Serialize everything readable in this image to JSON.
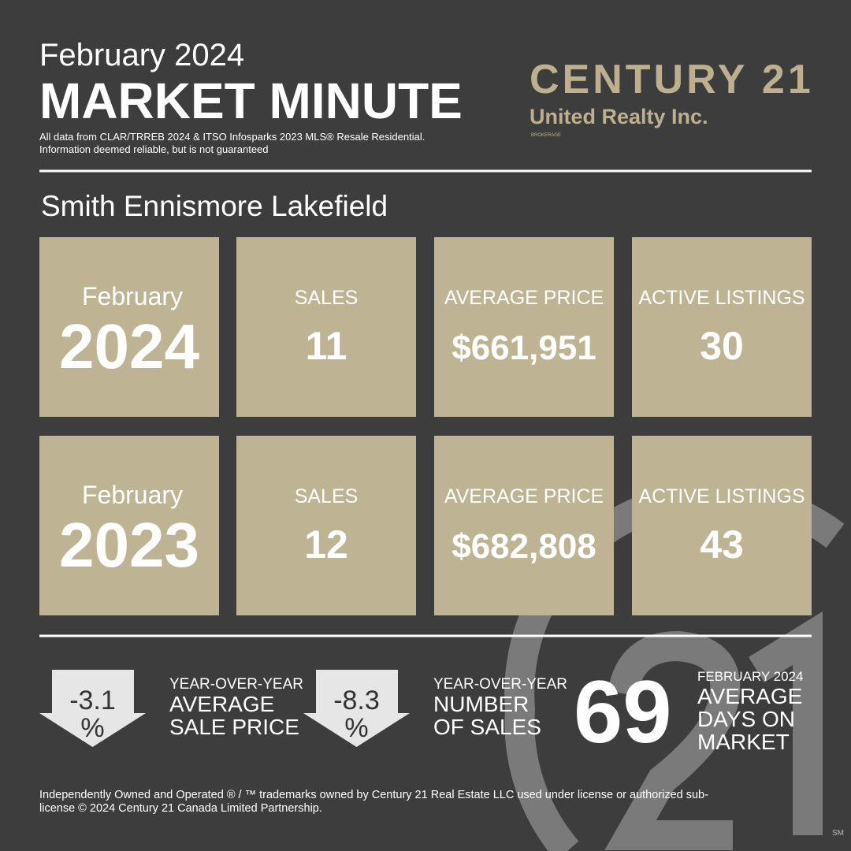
{
  "header": {
    "month": "February 2024",
    "title": "MARKET MINUTE",
    "disclaimer": [
      "All data from CLAR/TRREB 2024 & ITSO Infosparks 2023 MLS® Resale  Residential.",
      "Information deemed reliable, but is not guaranteed"
    ]
  },
  "logo": {
    "name": "CENTURY 21",
    "company": "United Realty Inc.",
    "tagline": "BROKERAGE"
  },
  "region": "Smith Ennismore Lakefield",
  "periods": [
    {
      "month": "February",
      "year": "2024",
      "stats": [
        {
          "label": "SALES",
          "value": "11"
        },
        {
          "label": "AVERAGE PRICE",
          "value": "$661,951"
        },
        {
          "label": "ACTIVE LISTINGS",
          "value": "30"
        }
      ]
    },
    {
      "month": "February",
      "year": "2023",
      "stats": [
        {
          "label": "SALES",
          "value": "12"
        },
        {
          "label": "AVERAGE PRICE",
          "value": "$682,808"
        },
        {
          "label": "ACTIVE LISTINGS",
          "value": "43"
        }
      ]
    }
  ],
  "summary": [
    {
      "value": "-3.1",
      "unit": "%",
      "label": [
        "YEAR-OVER-YEAR",
        "AVERAGE",
        "SALE PRICE"
      ]
    },
    {
      "value": "-8.3",
      "unit": "%",
      "label": [
        "YEAR-OVER-YEAR",
        "NUMBER",
        "OF SALES"
      ]
    }
  ],
  "days_on_market": {
    "value": "69",
    "label": [
      "FEBRUARY 2024",
      "AVERAGE",
      "DAYS ON",
      "MARKET"
    ]
  },
  "footer": [
    "Independently Owned and Operated ® / ™ trademarks owned by Century 21 Real Estate LLC used under license or authorized sub-",
    "license © 2024 Century 21 Canada Limited Partnership."
  ],
  "service_mark": "SM"
}
